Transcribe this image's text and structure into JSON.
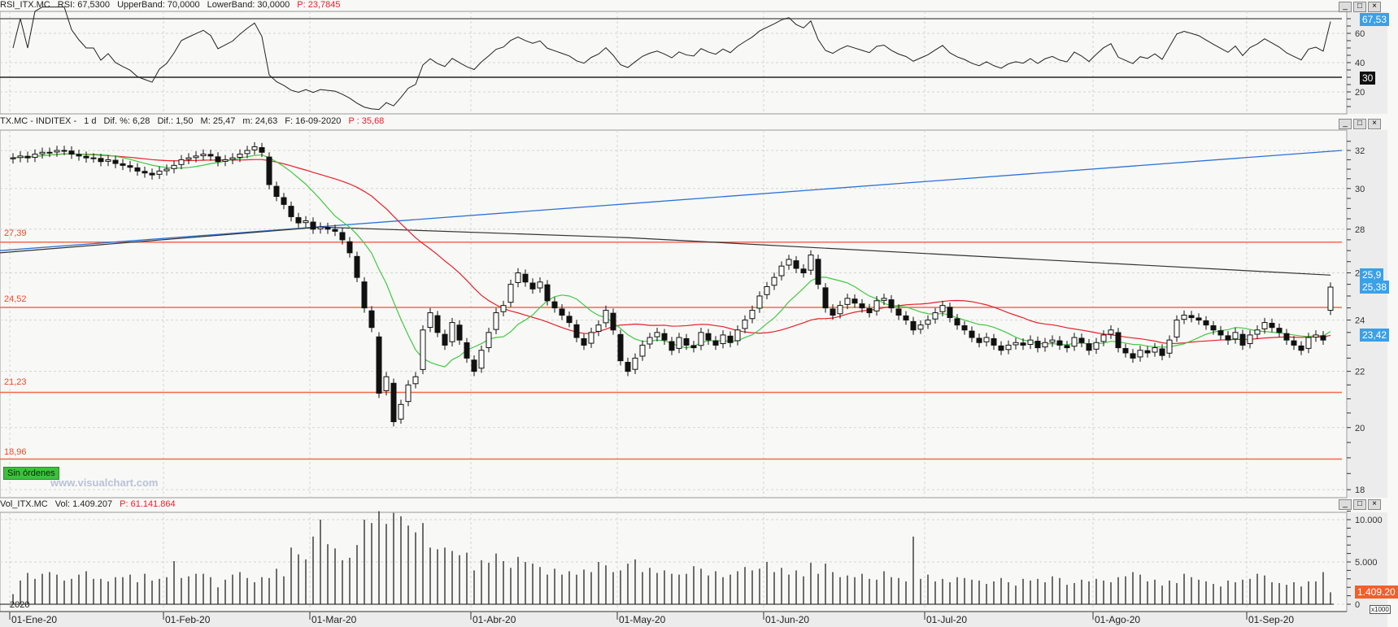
{
  "rsi_header": {
    "symbol": "RSI_ITX.MC",
    "rsi": "RSI: 67,5300",
    "upper": "UpperBand: 70,0000",
    "lower": "LowerBand: 30,0000",
    "p": "P: 23,7845"
  },
  "price_header": {
    "symbol": "TX.MC - INDITEX -",
    "period": "1 d",
    "dif_pct": "Dif. %: 6,28",
    "dif": "Dif.: 1,50",
    "max": "M: 25,47",
    "min": "m: 24,63",
    "date": "F: 16-09-2020",
    "p": "P : 35,68"
  },
  "vol_header": {
    "symbol": "Vol_ITX.MC",
    "vol": "Vol: 1.409.207",
    "p": "P: 61.141.864"
  },
  "window_buttons": {
    "minimize": "_",
    "maximize": "□",
    "close": "×"
  },
  "tags": {
    "rsi_last": "67,53",
    "rsi_lower": "30",
    "long_ma_last": "25,9",
    "price_last": "25,38",
    "ma_last": "23,42",
    "vol_last": "1.409.20",
    "vol_unit": "x1000"
  },
  "levels_labels": [
    "27,39",
    "24,52",
    "21,23",
    "18,96"
  ],
  "orders_button": "Sin órdenes",
  "watermark": "www.visualchart.com",
  "year_label": "2020",
  "colors": {
    "level": "#f26b4a",
    "ma_short": "#43c843",
    "ma_long": "#e8202a",
    "trend": "#2a72d8",
    "long_ma": "#333333",
    "tag_blue": "#3aa0e8",
    "tag_orange": "#f0602a"
  },
  "chart_data": {
    "type": "candlestick",
    "scale": "log",
    "ylim": [
      17.6,
      33
    ],
    "yticks": [
      18,
      20,
      22,
      24,
      26,
      28,
      30,
      32
    ],
    "date_labels": [
      "01-Ene-20",
      "01-Feb-20",
      "01-Mar-20",
      "01-Abr-20",
      "01-May-20",
      "01-Jun-20",
      "01-Jul-20",
      "01-Ago-20",
      "01-Sep-20"
    ],
    "month_lengths": [
      21,
      20,
      22,
      20,
      20,
      22,
      23,
      21,
      12
    ],
    "close": [
      31.6,
      31.7,
      31.6,
      31.8,
      31.9,
      31.9,
      32.0,
      32.0,
      31.8,
      31.7,
      31.6,
      31.6,
      31.4,
      31.5,
      31.3,
      31.2,
      31.1,
      30.9,
      30.8,
      30.7,
      30.9,
      31.0,
      31.2,
      31.5,
      31.6,
      31.7,
      31.8,
      31.7,
      31.4,
      31.5,
      31.6,
      31.8,
      32.0,
      32.2,
      31.9,
      30.2,
      29.6,
      29.2,
      28.6,
      28.3,
      28.4,
      28.0,
      28.1,
      28.0,
      27.9,
      27.5,
      26.9,
      25.8,
      24.5,
      23.7,
      21.2,
      21.8,
      20.2,
      20.8,
      21.5,
      21.8,
      23.6,
      24.3,
      23.5,
      23.0,
      23.9,
      23.2,
      22.5,
      22.0,
      22.8,
      23.5,
      24.3,
      24.6,
      25.5,
      26.0,
      25.6,
      25.3,
      25.6,
      24.8,
      24.5,
      24.2,
      23.9,
      23.3,
      23.0,
      23.5,
      23.8,
      24.4,
      23.6,
      22.4,
      22.0,
      22.5,
      23.0,
      23.3,
      23.5,
      23.2,
      22.8,
      23.3,
      23.0,
      22.9,
      23.5,
      23.2,
      23.0,
      23.4,
      23.1,
      23.6,
      24.0,
      24.4,
      25.0,
      25.4,
      25.8,
      26.3,
      26.6,
      26.2,
      26.0,
      26.8,
      25.5,
      24.5,
      24.2,
      24.6,
      24.9,
      24.7,
      24.5,
      24.3,
      24.8,
      24.9,
      24.5,
      24.2,
      24.0,
      23.6,
      23.8,
      24.0,
      24.3,
      24.6,
      24.1,
      23.8,
      23.6,
      23.3,
      23.1,
      23.3,
      23.0,
      22.8,
      23.0,
      23.1,
      23.0,
      23.2,
      22.9,
      23.1,
      23.2,
      23.0,
      22.9,
      23.3,
      23.1,
      22.8,
      23.1,
      23.4,
      23.6,
      22.9,
      22.7,
      22.5,
      22.8,
      22.7,
      22.9,
      22.6,
      23.2,
      24.0,
      24.2,
      24.1,
      24.0,
      23.8,
      23.6,
      23.4,
      23.2,
      23.5,
      23.0,
      23.4,
      23.6,
      23.9,
      23.7,
      23.5,
      23.2,
      23.0,
      22.8,
      23.3,
      23.4,
      23.2,
      25.38
    ],
    "volume_thousands": [
      1200,
      2800,
      3700,
      3000,
      3600,
      3800,
      3500,
      2800,
      3000,
      3500,
      3900,
      3000,
      3000,
      2700,
      3200,
      3200,
      3500,
      2600,
      3600,
      2800,
      3000,
      3200,
      5100,
      3100,
      3300,
      3600,
      3600,
      3200,
      2000,
      2900,
      3500,
      3800,
      3100,
      2600,
      3200,
      3100,
      4200,
      3300,
      6700,
      5900,
      5300,
      8000,
      10000,
      7100,
      6600,
      5200,
      5500,
      7000,
      10000,
      9600,
      11000,
      9500,
      10800,
      10400,
      9300,
      8500,
      9600,
      6700,
      6500,
      6700,
      6300,
      5800,
      6100,
      4000,
      5200,
      4900,
      6000,
      5100,
      4300,
      5600,
      5000,
      4800,
      4400,
      3500,
      4200,
      3500,
      3900,
      3500,
      4100,
      3800,
      5000,
      4600,
      3800,
      4000,
      4800,
      5300,
      3800,
      4300,
      3700,
      4000,
      3600,
      3500,
      3600,
      4500,
      4200,
      3400,
      3900,
      3200,
      3500,
      3900,
      4400,
      4000,
      4200,
      5000,
      3800,
      4300,
      3500,
      4000,
      3300,
      4900,
      3600,
      4800,
      3800,
      3200,
      3400,
      3200,
      3600,
      3000,
      2900,
      3900,
      3200,
      3100,
      2700,
      8000,
      3000,
      3500,
      2700,
      3000,
      2600,
      3200,
      3100,
      2900,
      2800,
      2400,
      2700,
      3100,
      2600,
      2200,
      3000,
      2800,
      3000,
      2600,
      3300,
      3100,
      2300,
      2500,
      2900,
      2700,
      3000,
      2800,
      2600,
      3200,
      3300,
      3800,
      3500,
      2700,
      2900,
      2200,
      2800,
      2500,
      3600,
      3200,
      2900,
      2700,
      2400,
      2100,
      2800,
      2600,
      2900,
      3000,
      3600,
      3400,
      2600,
      2500,
      2300,
      2600,
      2100,
      2700,
      2700,
      3800,
      1409.2
    ],
    "volume_yticks": [
      0,
      5000,
      10000
    ],
    "volume_tick_labels": [
      "0",
      "5.000",
      "10.000"
    ],
    "rsi_yticks": [
      20,
      40,
      60
    ],
    "rsi_bands": [
      70,
      30
    ],
    "levels": [
      27.39,
      24.52,
      21.23,
      18.96
    ],
    "trendline": {
      "start": 27.0,
      "end": 32.0
    },
    "long_ma_points": [
      [
        0,
        26.9
      ],
      [
        42,
        28.1
      ],
      [
        84,
        27.6
      ],
      [
        180,
        25.9
      ]
    ]
  }
}
